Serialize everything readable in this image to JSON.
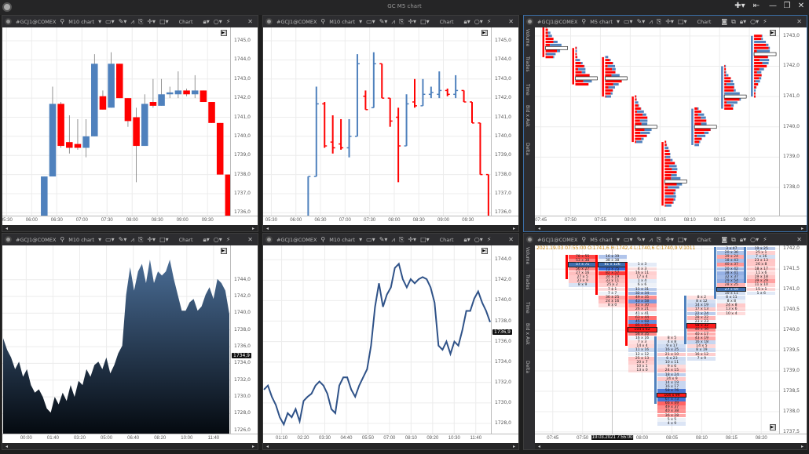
{
  "window": {
    "title": "GC M5 chart",
    "buttons": [
      "✚▾",
      "⇤",
      "—",
      "❐",
      "✕"
    ]
  },
  "panels": [
    {
      "symbol": "#GCJ1@COMEX",
      "timeframe": "M10 chart",
      "mode": "Chart",
      "extra_icons": false,
      "side_tabs": []
    },
    {
      "symbol": "#GCJ1@COMEX",
      "timeframe": "M10 chart",
      "mode": "Chart",
      "extra_icons": false,
      "side_tabs": []
    },
    {
      "symbol": "#GCJ1@COMEX",
      "timeframe": "M5 chart",
      "mode": "Chart",
      "extra_icons": true,
      "side_tabs": [
        "Volume",
        "Trades",
        "Time",
        "Bid x Ask",
        "Delta"
      ]
    },
    {
      "symbol": "#GCJ1@COMEX",
      "timeframe": "M10 chart",
      "mode": "Chart",
      "extra_icons": false,
      "side_tabs": []
    },
    {
      "symbol": "#GCJ1@COMEX",
      "timeframe": "M10 chart",
      "mode": "Chart",
      "extra_icons": false,
      "side_tabs": []
    },
    {
      "symbol": "#GCJ1@COMEX",
      "timeframe": "M5 chart",
      "mode": "Chart",
      "extra_icons": true,
      "side_tabs": [
        "Volume",
        "Trades",
        "Time",
        "Bid x Ask",
        "Delta"
      ]
    }
  ],
  "colors": {
    "up": "#4f81bd",
    "down": "#ff0000",
    "area_top": "#4a6d96",
    "area_bottom": "#050a10",
    "line": "#2f5288",
    "info": "#d08a10"
  },
  "chart_data": [
    {
      "type": "candlestick",
      "xlim": [
        "05:25",
        "09:57"
      ],
      "ylim": [
        1735.85,
        1745.7
      ],
      "bar_minutes": 10,
      "x_ticks": [
        "05:30",
        "06:00",
        "06:30",
        "07:00",
        "07:30",
        "08:00",
        "08:30",
        "09:00",
        "09:30"
      ],
      "y_ticks": [
        "1745,0",
        "1744,0",
        "1743,0",
        "1742,0",
        "1741,0",
        "1740,0",
        "1739,0",
        "1738,0",
        "1737,0",
        "1736,0"
      ],
      "start": "06:10",
      "ohlc": [
        [
          1735.8,
          1737.9,
          1735.8,
          1737.9
        ],
        [
          1737.9,
          1742.6,
          1737.9,
          1741.7
        ],
        [
          1741.7,
          1741.8,
          1739.4,
          1739.5
        ],
        [
          1739.7,
          1741.1,
          1739.1,
          1739.4
        ],
        [
          1739.6,
          1740.9,
          1739.3,
          1739.4
        ],
        [
          1739.4,
          1740.9,
          1738.9,
          1740.0
        ],
        [
          1740.0,
          1744.3,
          1740.0,
          1743.8
        ],
        [
          1742.1,
          1742.4,
          1741.4,
          1741.4
        ],
        [
          1741.5,
          1744.4,
          1741.5,
          1743.8
        ],
        [
          1743.8,
          1743.8,
          1742.0,
          1742.0
        ],
        [
          1742.0,
          1742.0,
          1740.5,
          1740.8
        ],
        [
          1741.0,
          1741.5,
          1737.6,
          1739.5
        ],
        [
          1739.5,
          1742.2,
          1739.5,
          1741.7
        ],
        [
          1741.8,
          1743.0,
          1741.5,
          1741.6
        ],
        [
          1741.6,
          1743.0,
          1741.6,
          1742.2
        ],
        [
          1742.2,
          1742.6,
          1742.0,
          1742.3
        ],
        [
          1742.2,
          1743.4,
          1742.0,
          1742.4
        ],
        [
          1742.4,
          1742.5,
          1742.1,
          1742.2
        ],
        [
          1742.2,
          1743.2,
          1742.0,
          1742.4
        ],
        [
          1742.4,
          1742.4,
          1741.8,
          1741.8
        ],
        [
          1741.8,
          1741.8,
          1740.7,
          1740.7
        ],
        [
          1740.7,
          1740.7,
          1738.0,
          1738.0
        ],
        [
          1738.0,
          1738.0,
          1735.8,
          1735.8
        ]
      ]
    },
    {
      "type": "ohlc",
      "xlim": [
        "05:20",
        "09:58"
      ],
      "ylim": [
        1735.85,
        1745.7
      ],
      "bar_minutes": 10,
      "x_ticks": [
        "05:30",
        "06:00",
        "06:30",
        "07:00",
        "07:30",
        "08:00",
        "08:30",
        "09:00",
        "09:30"
      ],
      "y_ticks": [
        "1745,0",
        "1744,0",
        "1743,0",
        "1742,0",
        "1741,0",
        "1740,0",
        "1739,0",
        "1738,0",
        "1737,0",
        "1736,0"
      ],
      "start": "06:10",
      "ohlc": [
        [
          1735.8,
          1737.9,
          1735.8,
          1737.9
        ],
        [
          1737.9,
          1742.6,
          1737.9,
          1741.7
        ],
        [
          1741.7,
          1741.8,
          1739.4,
          1739.5
        ],
        [
          1739.7,
          1741.1,
          1739.1,
          1739.4
        ],
        [
          1739.6,
          1740.9,
          1739.3,
          1739.4
        ],
        [
          1739.4,
          1740.9,
          1738.9,
          1740.0
        ],
        [
          1740.0,
          1744.3,
          1740.0,
          1743.8
        ],
        [
          1742.1,
          1742.4,
          1741.4,
          1741.4
        ],
        [
          1741.5,
          1744.4,
          1741.5,
          1743.8
        ],
        [
          1743.8,
          1743.8,
          1742.0,
          1742.0
        ],
        [
          1742.0,
          1742.0,
          1740.5,
          1740.8
        ],
        [
          1741.0,
          1741.5,
          1737.6,
          1739.5
        ],
        [
          1739.5,
          1742.2,
          1739.5,
          1741.7
        ],
        [
          1741.8,
          1743.0,
          1741.5,
          1741.6
        ],
        [
          1741.6,
          1743.0,
          1741.6,
          1742.2
        ],
        [
          1742.2,
          1742.6,
          1742.0,
          1742.3
        ],
        [
          1742.2,
          1743.4,
          1742.0,
          1742.4
        ],
        [
          1742.4,
          1742.5,
          1742.1,
          1742.2
        ],
        [
          1742.2,
          1743.2,
          1742.0,
          1742.4
        ],
        [
          1742.4,
          1742.4,
          1741.8,
          1741.8
        ],
        [
          1741.8,
          1741.8,
          1740.7,
          1740.7
        ],
        [
          1740.7,
          1740.7,
          1738.0,
          1738.0
        ],
        [
          1738.0,
          1738.0,
          1735.8,
          1735.8
        ]
      ]
    },
    {
      "type": "volume-profile",
      "xlim": [
        "07:44",
        "08:25"
      ],
      "ylim": [
        1737.07,
        1743.28
      ],
      "x_ticks": [
        "07:45",
        "07:50",
        "07:55",
        "08:00",
        "08:05",
        "08:10",
        "08:15",
        "08:20"
      ],
      "y_ticks": [
        "1743,0",
        "1742,0",
        "1741,0",
        "1740,0",
        "1739,0",
        "1738,0"
      ],
      "columns": [
        {
          "time": "07:45",
          "low": 1742.3,
          "high": 1743.3,
          "poc": 1742.6,
          "direction": "down"
        },
        {
          "time": "07:50",
          "low": 1741.4,
          "high": 1742.6,
          "poc": 1741.6,
          "direction": "down"
        },
        {
          "time": "07:55",
          "low": 1741.0,
          "high": 1742.3,
          "poc": 1741.6,
          "direction": "down"
        },
        {
          "time": "08:00",
          "low": 1739.5,
          "high": 1741.0,
          "poc": 1740.0,
          "direction": "down"
        },
        {
          "time": "08:05",
          "low": 1737.4,
          "high": 1739.5,
          "poc": 1738.2,
          "direction": "down"
        },
        {
          "time": "08:10",
          "low": 1739.4,
          "high": 1740.6,
          "poc": 1740.0,
          "direction": "up"
        },
        {
          "time": "08:15",
          "low": 1740.6,
          "high": 1742.0,
          "poc": 1741.0,
          "direction": "up"
        },
        {
          "time": "08:20",
          "low": 1741.0,
          "high": 1743.0,
          "poc": 1742.4,
          "direction": "up"
        }
      ]
    },
    {
      "type": "area",
      "xlim": [
        "22:31",
        "12:42"
      ],
      "ylim": [
        1725.6,
        1748.1
      ],
      "x_ticks": [
        "00:00",
        "01:40",
        "03:20",
        "05:00",
        "06:40",
        "08:20",
        "10:00",
        "11:40"
      ],
      "y_ticks": [
        "1744,0",
        "1742,0",
        "1740,0",
        "1738,0",
        "1736,0",
        "1734,0",
        "1732,0",
        "1730,0",
        "1728,0",
        "1726,0"
      ],
      "current_price": "1734,9",
      "values": [
        1737.0,
        1735.6,
        1734.7,
        1733.3,
        1734.2,
        1732.4,
        1733.3,
        1731.4,
        1730.5,
        1730.9,
        1730.0,
        1728.6,
        1728.1,
        1730.0,
        1729.1,
        1730.5,
        1729.5,
        1731.4,
        1730.0,
        1731.9,
        1731.4,
        1733.3,
        1732.4,
        1733.8,
        1734.2,
        1733.3,
        1734.7,
        1732.8,
        1733.8,
        1735.2,
        1736.1,
        1742.2,
        1745.5,
        1742.7,
        1745.0,
        1745.9,
        1743.6,
        1746.4,
        1743.6,
        1745.0,
        1744.5,
        1745.0,
        1746.4,
        1744.1,
        1742.2,
        1740.3,
        1740.3,
        1741.3,
        1741.7,
        1740.3,
        1740.8,
        1742.2,
        1743.1,
        1741.7,
        1744.1,
        1743.6,
        1742.7,
        1739.9
      ]
    },
    {
      "type": "line",
      "xlim": [
        "00:10",
        "12:29"
      ],
      "ylim": [
        1727.0,
        1745.4
      ],
      "x_ticks": [
        "01:10",
        "02:20",
        "03:30",
        "04:40",
        "05:50",
        "07:00",
        "08:10",
        "09:20",
        "10:30",
        "11:40"
      ],
      "y_ticks": [
        "1744,0",
        "1742,0",
        "1740,0",
        "1738,0",
        "1736,0",
        "1734,0",
        "1732,0",
        "1730,0",
        "1728,0"
      ],
      "current_price": "1736,9",
      "values": [
        1731.3,
        1731.7,
        1730.6,
        1729.8,
        1728.6,
        1727.9,
        1729.0,
        1728.6,
        1729.4,
        1728.2,
        1730.2,
        1730.6,
        1730.9,
        1731.7,
        1732.1,
        1731.7,
        1730.9,
        1729.4,
        1729.0,
        1731.7,
        1732.5,
        1732.5,
        1731.3,
        1730.6,
        1731.7,
        1732.5,
        1733.3,
        1735.6,
        1739.4,
        1741.7,
        1739.4,
        1740.6,
        1741.3,
        1743.2,
        1743.6,
        1742.1,
        1741.3,
        1742.1,
        1741.7,
        1742.1,
        1742.3,
        1742.1,
        1741.3,
        1739.8,
        1735.6,
        1735.2,
        1736.0,
        1734.8,
        1736.0,
        1735.6,
        1737.1,
        1739.0,
        1739.0,
        1740.2,
        1740.9,
        1739.8,
        1739.0,
        1737.9
      ]
    },
    {
      "type": "footprint",
      "xlim": [
        "07:42",
        "08:23"
      ],
      "ylim": [
        1737.46,
        1742.08
      ],
      "tick_size": 0.1,
      "info": "2021.19.03 07:55:00 O:1741,6 H:1742,4 L:1740,6 C:1740,9 V:1011",
      "crosshair_time": "19.03.2021 7:55:00",
      "x_ticks": [
        "07:45",
        "07:50",
        "08:00",
        "08:05",
        "08:10",
        "08:15",
        "08:20"
      ],
      "y_ticks": [
        "1742,0",
        "1741,5",
        "1741,0",
        "1740,5",
        "1740,0",
        "1739,5",
        "1739,0",
        "1738,5",
        "1738,0",
        "1737,5"
      ],
      "columns": [
        {
          "time": "07:50",
          "top": 1741.8,
          "direction": "down",
          "poc": 2,
          "cells": [
            "78 x 55",
            "53 x 38",
            "57 x 71",
            "56 x 27",
            "27 x 16",
            "27 x 5",
            "23 x 9",
            "8 x 9"
          ]
        },
        {
          "time": "07:55",
          "top": 1741.8,
          "direction": "down",
          "poc": 2,
          "cells": [
            "16 x 39",
            "38 x 38",
            "81 x 126",
            "71 x 75",
            "82 x 57",
            "34 x 19",
            "33 x 11",
            "25 x 2",
            "7 x 1",
            "7 x 7",
            "36 x 25",
            "24 x 16",
            "8 x 0"
          ]
        },
        {
          "time": "08:00",
          "top": 1741.6,
          "direction": "down",
          "poc": 16,
          "cells": [
            "1 x 3",
            "4 x 3",
            "16 x 11",
            "17 x 4",
            "1 x 4",
            "6 x 6",
            "11 x 31",
            "32 x 34",
            "49 x 35",
            "43 x 58",
            "42 x 30",
            "26 x 21",
            "41 x 41",
            "63 x 44",
            "45 x 68",
            "85 x 69",
            "104 x 62",
            "56 x 35",
            "16 x 16",
            "7 x 3",
            "14 x 4",
            "11 x 16",
            "12 x 12",
            "25 x 13",
            "20 x 7",
            "10 x 1",
            "13 x 0"
          ]
        },
        {
          "time": "08:05",
          "top": 1739.8,
          "direction": "up",
          "poc": 14,
          "cells": [
            "8 x 5",
            "4 x 8",
            "9 x 17",
            "16 x 25",
            "21 x 10",
            "6 x 23",
            "10 x 11",
            "9 x 6",
            "24 x 15",
            "18 x 24",
            "24 x 9",
            "14 x 19",
            "16 x 17",
            "58 x 76",
            "104 x 99",
            "67 x 73",
            "66 x 49",
            "49 x 37",
            "40 x 38",
            "36 x 28",
            "5 x 5",
            "4 x 9"
          ]
        },
        {
          "time": "08:10",
          "top": 1740.8,
          "direction": "up",
          "poc": 7,
          "cells": [
            "8 x 2",
            "8 x 12",
            "14 x 19",
            "17 x 13",
            "22 x 24",
            "28 x 22",
            "23 x 23",
            "58 x 32",
            "46 x 36",
            "40 x 17",
            "43 x 19",
            "16 x 18",
            "14 x 5",
            "8 x 19",
            "16 x 12",
            "7 x 9"
          ]
        },
        {
          "time": "08:15",
          "top": 1742.0,
          "direction": "up",
          "poc": 10,
          "cells": [
            "3 x 47",
            "20 x 36",
            "39 x 24",
            "18 x 43",
            "40 x 37",
            "20 x 42",
            "38 x 41",
            "32 x 37",
            "29 x 54",
            "28 x 25",
            "27 x 69",
            "10 x 11",
            "8 x 11",
            "8 x 8",
            "24 x 8",
            "13 x 6",
            "10 x 4"
          ]
        },
        {
          "time": "08:20",
          "top": 1742.0,
          "direction": "up",
          "poc": -1,
          "cells": [
            "19 x 25",
            "25 x 1",
            "7 x 16",
            "23 x 13",
            "26 x 8",
            "18 x 17",
            "11 x 6",
            "19 x 18",
            "39 x 29",
            "11 x 10",
            "15 x 1",
            "1 x 6"
          ]
        }
      ]
    }
  ]
}
